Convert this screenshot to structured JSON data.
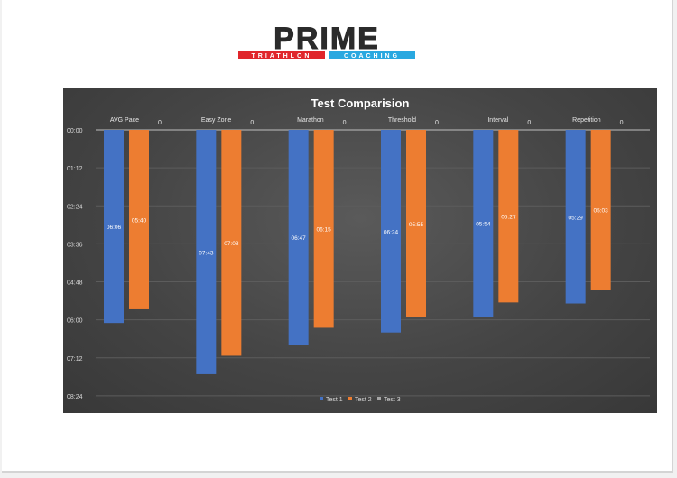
{
  "logo": {
    "main_text": "PRIME",
    "sub_left": "TRIATHLON",
    "sub_right": "COACHING",
    "colors": {
      "main": "#2b2b2b",
      "accent_red": "#e0262b",
      "accent_blue": "#29a8e0"
    }
  },
  "chart_data": {
    "type": "bar",
    "title": "Test Comparision",
    "categories": [
      "AVG Pace",
      "Easy Zone",
      "Marathon",
      "Threshold",
      "Interval",
      "Repetition"
    ],
    "y_unit": "mm:ss",
    "y_axis_reversed": true,
    "ylim": [
      "00:00",
      "09:00"
    ],
    "y_ticks": [
      "00:00",
      "01:12",
      "02:24",
      "03:36",
      "04:48",
      "06:00",
      "07:12",
      "08:24"
    ],
    "series": [
      {
        "name": "Test 1",
        "color": "#4472c4",
        "values": [
          "06:06",
          "07:43",
          "06:47",
          "06:24",
          "05:54",
          "05:29"
        ]
      },
      {
        "name": "Test 2",
        "color": "#ed7d31",
        "values": [
          "05:40",
          "07:08",
          "06:15",
          "05:55",
          "05:27",
          "05:03"
        ]
      },
      {
        "name": "Test 3",
        "color": "#a5a5a5",
        "values": [
          "0",
          "0",
          "0",
          "0",
          "0",
          "0"
        ]
      }
    ],
    "grid": true,
    "legend_position": "bottom"
  }
}
